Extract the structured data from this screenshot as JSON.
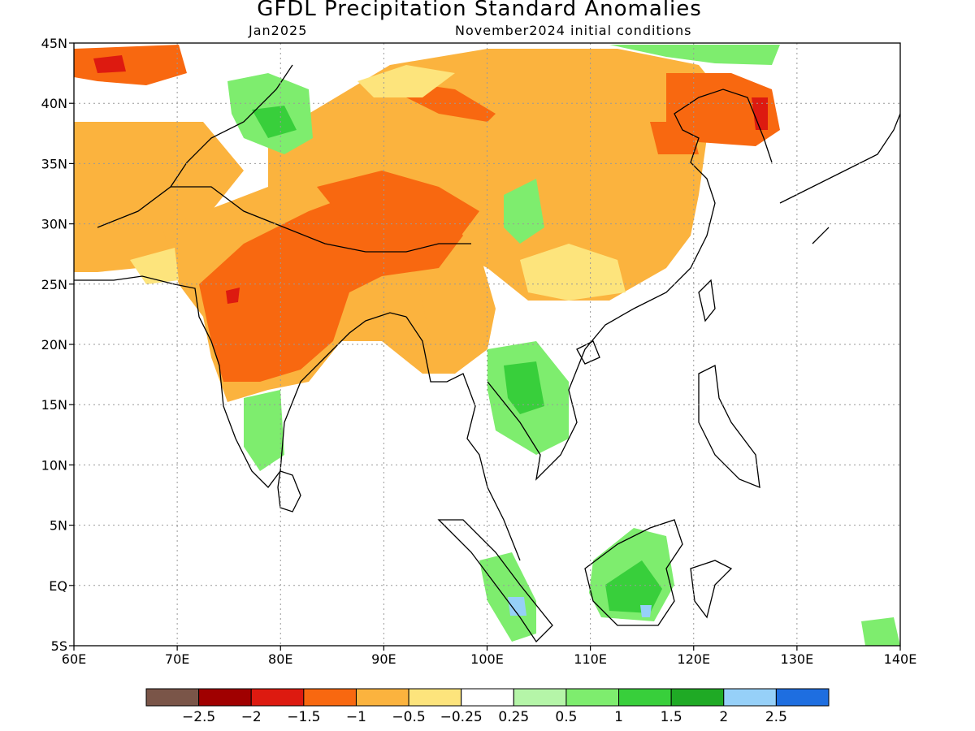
{
  "title": "GFDL Precipitation Standard Anomalies",
  "subtitle_left": "Jan2025",
  "subtitle_right": "November2024 initial conditions",
  "map": {
    "lon_range": [
      60,
      140
    ],
    "lat_range": [
      -5,
      45
    ],
    "lon_ticks": [
      60,
      70,
      80,
      90,
      100,
      110,
      120,
      130,
      140
    ],
    "lat_ticks": [
      -5,
      0,
      5,
      10,
      15,
      20,
      25,
      30,
      35,
      40,
      45
    ],
    "lon_labels": [
      "60E",
      "70E",
      "80E",
      "90E",
      "100E",
      "110E",
      "120E",
      "130E",
      "140E"
    ],
    "lat_labels": [
      "5S",
      "EQ",
      "5N",
      "10N",
      "15N",
      "20N",
      "25N",
      "30N",
      "35N",
      "40N",
      "45N"
    ],
    "gridlines": "dotted"
  },
  "colorbar": {
    "colors": [
      "#7a5548",
      "#a00000",
      "#dd1a10",
      "#f86810",
      "#fbb33e",
      "#fde47c",
      "#ffffff",
      "#b5f5a8",
      "#7eed6e",
      "#38cf3b",
      "#1faa25",
      "#96d0f8",
      "#1e6ee0"
    ],
    "labels": [
      "−2.5",
      "−2",
      "−1.5",
      "−1",
      "−0.5",
      "−0.25",
      "0.25",
      "0.5",
      "1",
      "1.5",
      "2",
      "2.5"
    ]
  },
  "legend_title": "",
  "anomaly_regions": [
    {
      "name": "dry-north-india-nepal",
      "level": -1
    },
    {
      "name": "dry-tibetan-plateau",
      "level": -0.5
    },
    {
      "name": "dry-south-china",
      "level": -0.5
    },
    {
      "name": "dry-korea",
      "level": -1.5
    },
    {
      "name": "wet-mongolia-xinjiang",
      "level": 1
    },
    {
      "name": "wet-indochina",
      "level": 1
    },
    {
      "name": "wet-borneo",
      "level": 1.5
    },
    {
      "name": "wet-sumatra",
      "level": 1
    },
    {
      "name": "wet-southern-india",
      "level": 0.5
    }
  ]
}
